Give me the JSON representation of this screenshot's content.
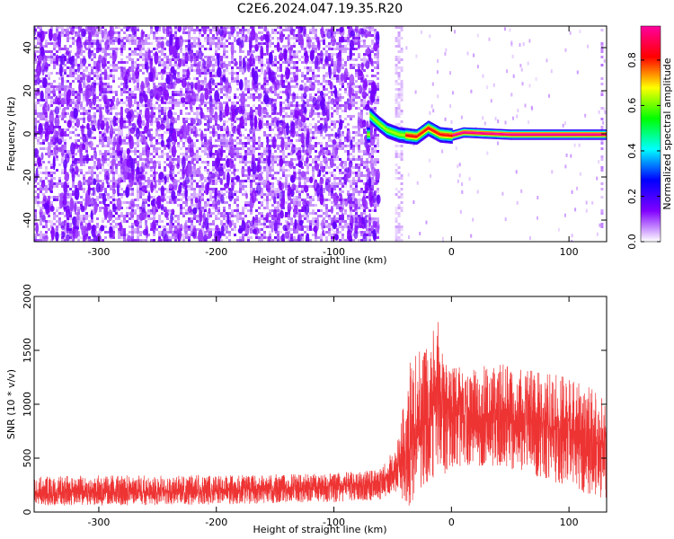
{
  "title": "C2E6.2024.047.19.35.R20",
  "chart_data": [
    {
      "type": "heatmap",
      "xlabel": "Height of straight line (km)",
      "ylabel": "Frequency (Hz)",
      "xlim": [
        -355,
        132
      ],
      "ylim": [
        -50,
        50
      ],
      "x_ticks": [
        -300,
        -200,
        -100,
        0,
        100
      ],
      "y_ticks": [
        -40,
        -20,
        0,
        20,
        40
      ],
      "colorbar": {
        "label": "Normalized spectral amplitude",
        "range": [
          0,
          0.95
        ],
        "ticks": [
          0.0,
          0.2,
          0.4,
          0.6,
          0.8
        ],
        "tick_labels": [
          "0.0",
          "0.2",
          "0.4",
          "0.6",
          "0.8"
        ],
        "colormap": [
          "#ffffff",
          "#8000ff",
          "#0000ff",
          "#00ffff",
          "#00ff00",
          "#ffff00",
          "#ff0000",
          "#ff00a0"
        ]
      },
      "features": {
        "noise_region_x": [
          -355,
          -62
        ],
        "noise_band_x": [
          -48,
          -42
        ],
        "signal_start_x": -72,
        "signal_frequency_hz": 0,
        "signal_points": [
          {
            "x": -70,
            "y": 9
          },
          {
            "x": -62,
            "y": 5
          },
          {
            "x": -55,
            "y": 2
          },
          {
            "x": -45,
            "y": 0
          },
          {
            "x": -30,
            "y": -1
          },
          {
            "x": -20,
            "y": 3
          },
          {
            "x": -10,
            "y": 0
          },
          {
            "x": 0,
            "y": -0.5
          },
          {
            "x": 10,
            "y": 1
          },
          {
            "x": 50,
            "y": 0
          },
          {
            "x": 100,
            "y": 0
          },
          {
            "x": 132,
            "y": 0
          }
        ]
      }
    },
    {
      "type": "line",
      "xlabel": "Height of straight line (km)",
      "ylabel": "SNR (10 * v/v)",
      "xlim": [
        -355,
        132
      ],
      "ylim": [
        0,
        2000
      ],
      "x_ticks": [
        -300,
        -200,
        -100,
        0,
        100
      ],
      "y_ticks": [
        0,
        500,
        1000,
        1500,
        2000
      ],
      "line_color": "#ee3333",
      "envelope": {
        "x": [
          -355,
          -300,
          -200,
          -100,
          -60,
          -45,
          -38,
          -30,
          -20,
          -12,
          -5,
          0,
          20,
          40,
          60,
          80,
          100,
          120,
          132
        ],
        "low": [
          60,
          60,
          70,
          90,
          110,
          200,
          20,
          150,
          250,
          300,
          350,
          400,
          430,
          420,
          380,
          300,
          230,
          150,
          120
        ],
        "high": [
          330,
          340,
          340,
          360,
          400,
          700,
          1300,
          1600,
          1600,
          1800,
          1400,
          1350,
          1350,
          1380,
          1330,
          1300,
          1250,
          1180,
          1050
        ],
        "mean": [
          180,
          185,
          200,
          240,
          280,
          420,
          600,
          650,
          850,
          1000,
          950,
          900,
          900,
          920,
          860,
          800,
          720,
          640,
          620
        ]
      }
    }
  ]
}
